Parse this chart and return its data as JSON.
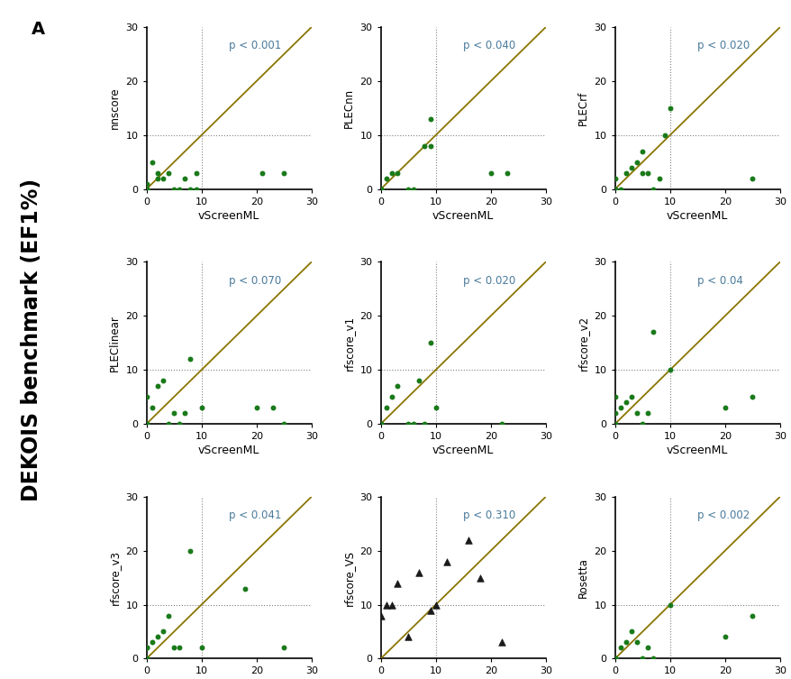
{
  "title_label": "A",
  "ylabel_main": "DEKOIS benchmark (EF1%)",
  "diagonal_color": "#8B7500",
  "dot_color": "#1a7a1a",
  "triangle_color": "#1a1a1a",
  "p_text_color": "#4a7a9b",
  "subplots": [
    {
      "ylabel": "nnscore",
      "xlabel": "vScreenML",
      "pvalue": "p < 0.001",
      "marker": "o",
      "x": [
        0,
        0,
        0,
        0,
        0,
        1,
        2,
        2,
        3,
        4,
        5,
        6,
        7,
        8,
        9,
        9,
        21,
        25
      ],
      "y": [
        0,
        0,
        0,
        1,
        0,
        5,
        2,
        3,
        2,
        3,
        0,
        0,
        2,
        0,
        3,
        0,
        3,
        3
      ]
    },
    {
      "ylabel": "PLECnn",
      "xlabel": "vScreenML",
      "pvalue": "p < 0.040",
      "marker": "o",
      "x": [
        0,
        0,
        0,
        0,
        1,
        2,
        3,
        5,
        6,
        8,
        9,
        9,
        20,
        23
      ],
      "y": [
        0,
        0,
        0,
        0,
        2,
        3,
        3,
        0,
        0,
        8,
        8,
        13,
        3,
        3
      ]
    },
    {
      "ylabel": "PLECrf",
      "xlabel": "vScreenML",
      "pvalue": "p < 0.020",
      "marker": "o",
      "x": [
        0,
        0,
        0,
        0,
        1,
        2,
        3,
        4,
        5,
        5,
        6,
        7,
        8,
        9,
        10,
        25
      ],
      "y": [
        0,
        0,
        0,
        2,
        0,
        3,
        4,
        5,
        3,
        7,
        3,
        0,
        2,
        10,
        15,
        2
      ]
    },
    {
      "ylabel": "PLEClinear",
      "xlabel": "vScreenML",
      "pvalue": "p < 0.070",
      "marker": "o",
      "x": [
        0,
        0,
        0,
        1,
        2,
        3,
        4,
        5,
        6,
        7,
        8,
        10,
        20,
        23,
        25
      ],
      "y": [
        0,
        0,
        5,
        3,
        7,
        8,
        0,
        2,
        0,
        2,
        12,
        3,
        3,
        3,
        0
      ]
    },
    {
      "ylabel": "rfscore_v1",
      "xlabel": "vScreenML",
      "pvalue": "p < 0.020",
      "marker": "o",
      "x": [
        0,
        0,
        0,
        1,
        2,
        3,
        5,
        6,
        7,
        8,
        9,
        10,
        22
      ],
      "y": [
        0,
        0,
        0,
        3,
        5,
        7,
        0,
        0,
        8,
        0,
        15,
        3,
        0
      ]
    },
    {
      "ylabel": "rfscore_v2",
      "xlabel": "vScreenML",
      "pvalue": "p < 0.04",
      "marker": "o",
      "x": [
        0,
        0,
        0,
        1,
        2,
        3,
        4,
        5,
        6,
        7,
        10,
        20,
        25
      ],
      "y": [
        0,
        2,
        5,
        3,
        4,
        5,
        2,
        0,
        2,
        17,
        10,
        3,
        5
      ]
    },
    {
      "ylabel": "rfscore_v3",
      "xlabel": "vScreenML",
      "pvalue": "p < 0.041",
      "marker": "o",
      "x": [
        0,
        0,
        0,
        1,
        2,
        3,
        4,
        5,
        6,
        8,
        10,
        18,
        25
      ],
      "y": [
        0,
        2,
        2,
        3,
        4,
        5,
        8,
        2,
        2,
        20,
        2,
        13,
        2
      ]
    },
    {
      "ylabel": "rfscore_VS",
      "xlabel": "vScreenML",
      "pvalue": "p < 0.310",
      "marker": "^",
      "x": [
        0,
        1,
        2,
        3,
        5,
        7,
        9,
        10,
        12,
        16,
        18,
        22
      ],
      "y": [
        8,
        10,
        10,
        14,
        4,
        16,
        9,
        10,
        18,
        22,
        15,
        3
      ]
    },
    {
      "ylabel": "Rosetta",
      "xlabel": "vScreenML",
      "pvalue": "p < 0.002",
      "marker": "o",
      "x": [
        0,
        0,
        0,
        0,
        1,
        2,
        3,
        4,
        5,
        6,
        7,
        10,
        20,
        25
      ],
      "y": [
        0,
        0,
        0,
        0,
        2,
        3,
        5,
        3,
        0,
        2,
        0,
        10,
        4,
        8
      ]
    }
  ]
}
